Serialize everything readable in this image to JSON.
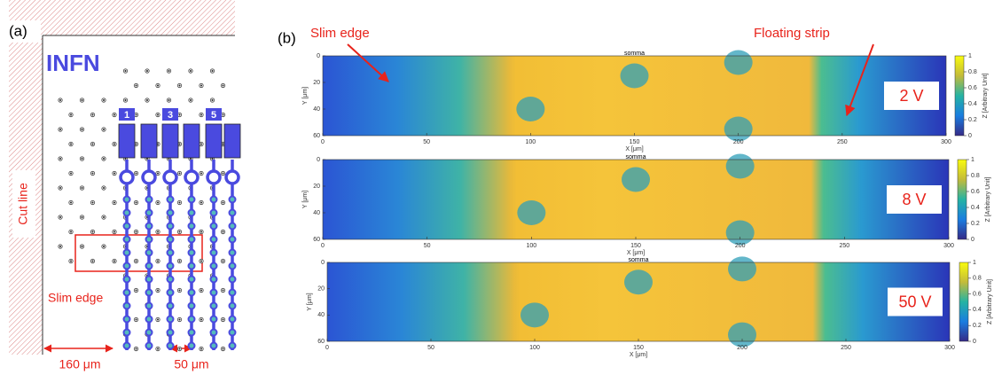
{
  "panel_a": {
    "label": "(a)",
    "logo": "INFN",
    "strip_labels": [
      "1",
      "3",
      "5"
    ],
    "cut_line": "Cut line",
    "slim_edge": "Slim edge",
    "dimensions": [
      "160 μm",
      "50 μm"
    ]
  },
  "panel_b": {
    "label": "(b)",
    "annotations": [
      "Slim edge",
      "Floating strip"
    ],
    "maps": [
      {
        "title": "somma",
        "voltage": "2 V"
      },
      {
        "title": "somma",
        "voltage": "8 V"
      },
      {
        "title": "somma",
        "voltage": "50 V"
      }
    ],
    "x_label": "X [μm]",
    "y_label": "Y [μm]",
    "x_ticks": [
      0,
      50,
      100,
      150,
      200,
      250,
      300
    ],
    "y_ticks": [
      0,
      20,
      40,
      60
    ],
    "colorbar_ticks": [
      0,
      0.2,
      0.4,
      0.6,
      0.8,
      1
    ],
    "colorbar_label": "Z [Arbitrary Unit]"
  }
}
